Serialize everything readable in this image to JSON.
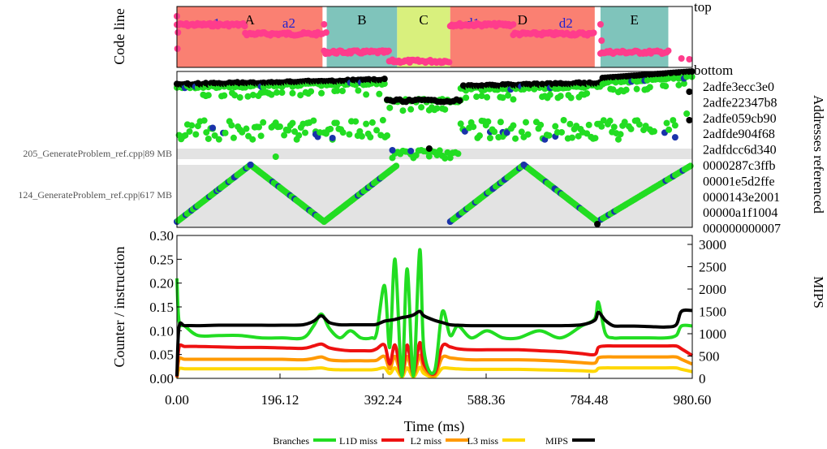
{
  "chart_data": [
    {
      "type": "timeline",
      "ylabel": "Code line",
      "top_label": "top",
      "bottom_label": "bottom",
      "xlim": [
        0,
        980.6
      ],
      "phases": [
        {
          "label": "A",
          "start": 0,
          "end": 277,
          "color": "#fa8072"
        },
        {
          "label": "B",
          "start": 285,
          "end": 419,
          "color": "#7fc4bb"
        },
        {
          "label": "C",
          "start": 419,
          "end": 520,
          "color": "#d9f07d"
        },
        {
          "label": "D",
          "start": 520,
          "end": 795,
          "color": "#fa8072"
        },
        {
          "label": "E",
          "start": 806,
          "end": 935,
          "color": "#7fc4bb"
        }
      ],
      "subphases": [
        {
          "label": "a1",
          "x": 70
        },
        {
          "label": "a2",
          "x": 213
        },
        {
          "label": "d1",
          "x": 563
        },
        {
          "label": "d2",
          "x": 740
        }
      ],
      "subphase_color": "#2020d0",
      "point_color": "#ff3c8c",
      "code_line_segments": [
        {
          "start": 0,
          "end": 130,
          "level": 0.7
        },
        {
          "start": 130,
          "end": 277,
          "level": 0.55
        },
        {
          "start": 280,
          "end": 404,
          "level": 0.25
        },
        {
          "start": 404,
          "end": 520,
          "level": 0.1
        },
        {
          "start": 520,
          "end": 640,
          "level": 0.7
        },
        {
          "start": 640,
          "end": 795,
          "level": 0.55
        },
        {
          "start": 806,
          "end": 935,
          "level": 0.25
        }
      ]
    },
    {
      "type": "scatter",
      "ylabel": "Addresses referenced",
      "left_labels": [
        "205_GenerateProblem_ref.cpp|89 MB",
        "124_GenerateProblem_ref.cpp|617 MB"
      ],
      "yticks": [
        "2adfe3ecc3e0",
        "2adfe22347b8",
        "2adfe059cb90",
        "2adfde904f68",
        "2adfdcc6d340",
        "0000287c3ffb",
        "00001e5d2ffe",
        "0000143e2001",
        "00000a1f1004",
        "000000000007"
      ],
      "series_colors": {
        "l1d": "#22dd22",
        "dram": "#1a33aa",
        "mem": "#000000"
      }
    },
    {
      "type": "line",
      "xlabel": "Time (ms)",
      "ylabel": "Counter / instruction",
      "y2label": "MIPS",
      "x": [
        0,
        4,
        15,
        40,
        80,
        120,
        160,
        200,
        240,
        260,
        275,
        290,
        310,
        330,
        350,
        370,
        380,
        395,
        405,
        415,
        428,
        438,
        450,
        462,
        470,
        490,
        505,
        520,
        535,
        560,
        590,
        620,
        650,
        690,
        730,
        770,
        795,
        802,
        815,
        830,
        845,
        870,
        900,
        930,
        950,
        960,
        980.6
      ],
      "xticks": [
        "0.00",
        "196.12",
        "392.24",
        "588.36",
        "784.48",
        "980.60"
      ],
      "xlim": [
        0,
        980.6
      ],
      "ylim": [
        0,
        0.3
      ],
      "yticks": [
        "0.00",
        "0.05",
        "0.10",
        "0.15",
        "0.20",
        "0.25",
        "0.30"
      ],
      "y2lim": [
        0,
        3200
      ],
      "y2ticks": [
        "0",
        "500",
        "1000",
        "1500",
        "2000",
        "2500",
        "3000"
      ],
      "series": [
        {
          "name": "Branches",
          "axis": "left",
          "color": "#22dd22",
          "values": [
            0.21,
            0.12,
            0.11,
            0.09,
            0.09,
            0.09,
            0.085,
            0.085,
            0.085,
            0.11,
            0.135,
            0.105,
            0.085,
            0.1,
            0.085,
            0.085,
            0.095,
            0.195,
            0.065,
            0.25,
            0.005,
            0.23,
            0.005,
            0.27,
            0.06,
            0.015,
            0.14,
            0.09,
            0.11,
            0.085,
            0.1,
            0.085,
            0.085,
            0.1,
            0.085,
            0.11,
            0.125,
            0.16,
            0.095,
            0.085,
            0.085,
            0.085,
            0.085,
            0.085,
            0.09,
            0.11,
            0.11
          ]
        },
        {
          "name": "L1D miss",
          "axis": "left",
          "color": "#ee1111",
          "values": [
            0.003,
            0.065,
            0.067,
            0.067,
            0.066,
            0.065,
            0.065,
            0.064,
            0.063,
            0.068,
            0.072,
            0.064,
            0.06,
            0.058,
            0.058,
            0.058,
            0.062,
            0.07,
            0.03,
            0.07,
            0.008,
            0.07,
            0.01,
            0.075,
            0.03,
            0.01,
            0.068,
            0.066,
            0.062,
            0.06,
            0.06,
            0.06,
            0.06,
            0.058,
            0.056,
            0.052,
            0.05,
            0.065,
            0.068,
            0.068,
            0.068,
            0.068,
            0.068,
            0.068,
            0.068,
            0.062,
            0.048
          ]
        },
        {
          "name": "L2 miss",
          "axis": "left",
          "color": "#ff9900",
          "values": [
            0.002,
            0.04,
            0.04,
            0.04,
            0.04,
            0.04,
            0.04,
            0.04,
            0.039,
            0.042,
            0.045,
            0.039,
            0.037,
            0.037,
            0.037,
            0.037,
            0.038,
            0.046,
            0.02,
            0.046,
            0.005,
            0.046,
            0.006,
            0.048,
            0.02,
            0.006,
            0.044,
            0.043,
            0.041,
            0.039,
            0.039,
            0.039,
            0.039,
            0.038,
            0.036,
            0.033,
            0.032,
            0.043,
            0.045,
            0.045,
            0.045,
            0.045,
            0.045,
            0.045,
            0.045,
            0.04,
            0.03
          ]
        },
        {
          "name": "L3 miss",
          "axis": "left",
          "color": "#ffd700",
          "values": [
            0.001,
            0.02,
            0.02,
            0.02,
            0.02,
            0.02,
            0.02,
            0.02,
            0.02,
            0.021,
            0.022,
            0.019,
            0.018,
            0.018,
            0.018,
            0.018,
            0.019,
            0.022,
            0.01,
            0.022,
            0.003,
            0.022,
            0.003,
            0.023,
            0.01,
            0.003,
            0.021,
            0.021,
            0.02,
            0.019,
            0.019,
            0.019,
            0.019,
            0.018,
            0.017,
            0.016,
            0.015,
            0.021,
            0.022,
            0.022,
            0.022,
            0.022,
            0.022,
            0.022,
            0.022,
            0.019,
            0.014
          ]
        },
        {
          "name": "MIPS",
          "axis": "right",
          "color": "#000000",
          "values": [
            50,
            1150,
            1180,
            1180,
            1190,
            1190,
            1190,
            1190,
            1200,
            1280,
            1400,
            1250,
            1200,
            1200,
            1200,
            1200,
            1210,
            1280,
            1300,
            1320,
            1360,
            1380,
            1420,
            1500,
            1400,
            1300,
            1250,
            1200,
            1190,
            1180,
            1180,
            1180,
            1180,
            1180,
            1180,
            1200,
            1300,
            1480,
            1300,
            1180,
            1170,
            1170,
            1160,
            1150,
            1200,
            1500,
            1520
          ]
        }
      ],
      "legend_placement": "bottom"
    }
  ]
}
